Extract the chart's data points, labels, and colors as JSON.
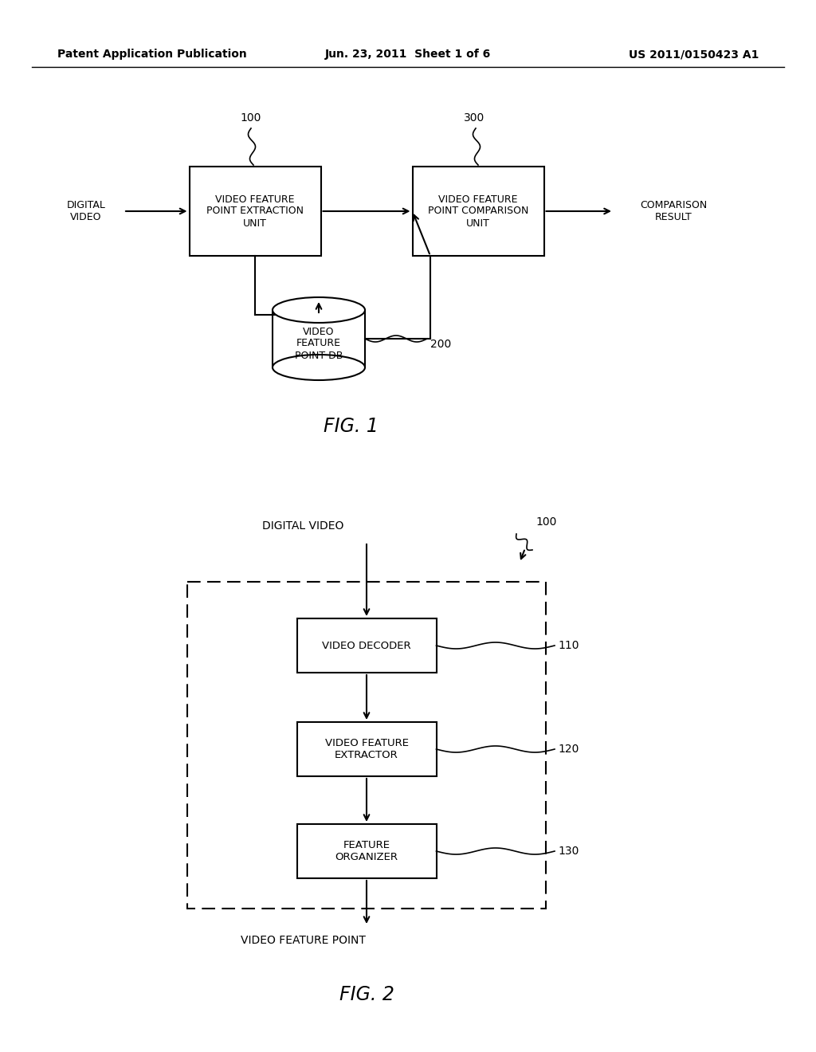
{
  "bg_color": "#ffffff",
  "header_left": "Patent Application Publication",
  "header_center": "Jun. 23, 2011  Sheet 1 of 6",
  "header_right": "US 2011/0150423 A1",
  "fig1": {
    "title": "FIG. 1",
    "box1_label": "VIDEO FEATURE\nPOINT EXTRACTION\nUNIT",
    "box2_label": "VIDEO FEATURE\nPOINT COMPARISON\nUNIT",
    "db_label": "VIDEO\nFEATURE\nPOINT DB",
    "label_left": "DIGITAL\nVIDEO",
    "label_right": "COMPARISON\nRESULT",
    "ref_100": "100",
    "ref_200": "200",
    "ref_300": "300"
  },
  "fig2": {
    "title": "FIG. 2",
    "box1_label": "VIDEO DECODER",
    "box2_label": "VIDEO FEATURE\nEXTRACTOR",
    "box3_label": "FEATURE\nORGANIZER",
    "label_top": "DIGITAL VIDEO",
    "label_bottom": "VIDEO FEATURE POINT",
    "ref_100": "100",
    "ref_110": "110",
    "ref_120": "120",
    "ref_130": "130"
  }
}
